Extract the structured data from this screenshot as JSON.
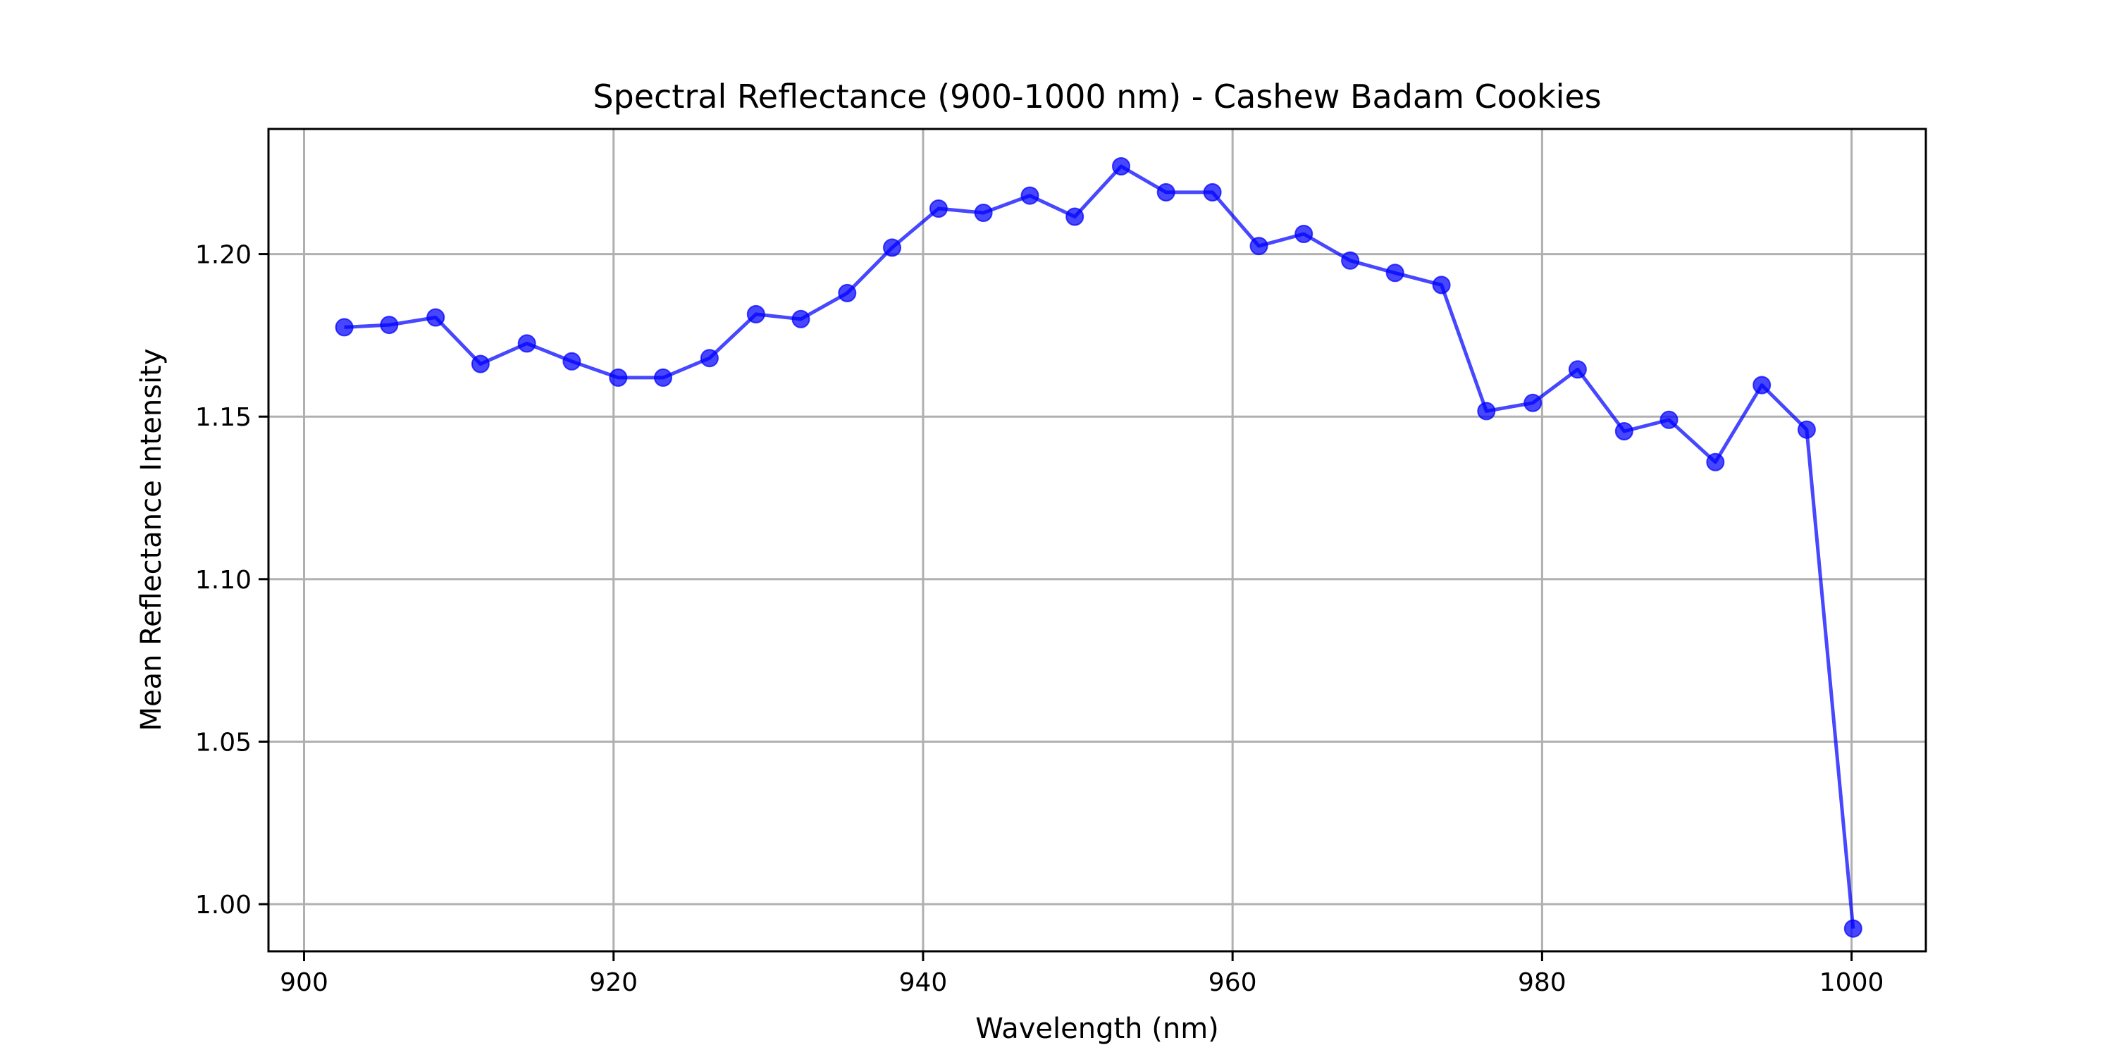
{
  "chart_data": {
    "type": "line",
    "title": "Spectral Reflectance (900-1000 nm) - Cashew Badam Cookies",
    "xlabel": "Wavelength (nm)",
    "ylabel": "Mean Reflectance Intensity",
    "xlim": [
      897.7,
      1004.8
    ],
    "ylim": [
      0.9855,
      1.2385
    ],
    "xticks": [
      900,
      920,
      940,
      960,
      980,
      1000
    ],
    "xtick_labels": [
      "900",
      "920",
      "940",
      "960",
      "980",
      "1000"
    ],
    "yticks": [
      1.0,
      1.05,
      1.1,
      1.15,
      1.2
    ],
    "ytick_labels": [
      "1.00",
      "1.05",
      "1.10",
      "1.15",
      "1.20"
    ],
    "grid": true,
    "series": [
      {
        "color": "#0000ff",
        "marker": "circle",
        "x": [
          902.6,
          905.5,
          908.5,
          911.4,
          914.4,
          917.3,
          920.3,
          923.2,
          926.2,
          929.2,
          932.1,
          935.1,
          938.0,
          941.0,
          943.9,
          946.9,
          949.8,
          952.8,
          955.7,
          958.7,
          961.7,
          964.6,
          967.6,
          970.5,
          973.5,
          976.4,
          979.4,
          982.3,
          985.3,
          988.2,
          991.2,
          994.2,
          997.1,
          1000.1
        ],
        "values": [
          1.1775,
          1.1782,
          1.1805,
          1.1662,
          1.1725,
          1.167,
          1.162,
          1.162,
          1.168,
          1.1815,
          1.18,
          1.188,
          1.202,
          1.214,
          1.2127,
          1.218,
          1.2115,
          1.227,
          1.219,
          1.219,
          1.2025,
          1.2062,
          1.198,
          1.1942,
          1.1905,
          1.1517,
          1.1542,
          1.1645,
          1.1455,
          1.149,
          1.136,
          1.1597,
          1.146,
          0.9925
        ]
      }
    ]
  }
}
